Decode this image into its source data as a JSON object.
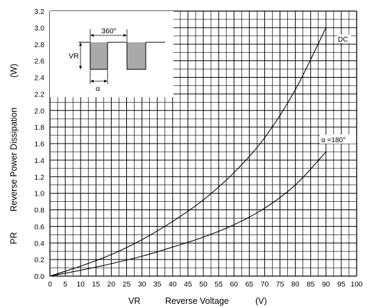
{
  "chart_data": {
    "type": "line",
    "xlabel_symbol": "VR",
    "xlabel": "Reverse Voltage",
    "xlabel_unit": "(V)",
    "ylabel_symbol": "PR",
    "ylabel": "Reverse Power Dissipation",
    "ylabel_unit": "(W)",
    "xlim": [
      0,
      100
    ],
    "ylim": [
      0,
      3.2
    ],
    "x_ticks": [
      "0",
      "5",
      "10",
      "15",
      "20",
      "25",
      "30",
      "35",
      "40",
      "45",
      "50",
      "55",
      "60",
      "65",
      "70",
      "75",
      "80",
      "85",
      "90",
      "95",
      "100"
    ],
    "y_ticks": [
      "0.0",
      "0.2",
      "0.4",
      "0.6",
      "0.8",
      "1.0",
      "1.2",
      "1.4",
      "1.6",
      "1.8",
      "2.0",
      "2.2",
      "2.4",
      "2.6",
      "2.8",
      "3.0",
      "3.2"
    ],
    "grid": true,
    "series": [
      {
        "name": "DC",
        "x": [
          0,
          10,
          20,
          30,
          40,
          50,
          60,
          70,
          80,
          90
        ],
        "values": [
          0.0,
          0.12,
          0.26,
          0.44,
          0.66,
          0.92,
          1.25,
          1.67,
          2.25,
          3.0
        ]
      },
      {
        "name": "α =180°",
        "x": [
          0,
          10,
          20,
          30,
          40,
          50,
          60,
          70,
          80,
          90
        ],
        "values": [
          0.0,
          0.07,
          0.15,
          0.24,
          0.35,
          0.47,
          0.62,
          0.82,
          1.1,
          1.5
        ]
      }
    ],
    "inset": {
      "period_label": "360°",
      "amplitude_label": "VR",
      "angle_label": "α"
    }
  }
}
